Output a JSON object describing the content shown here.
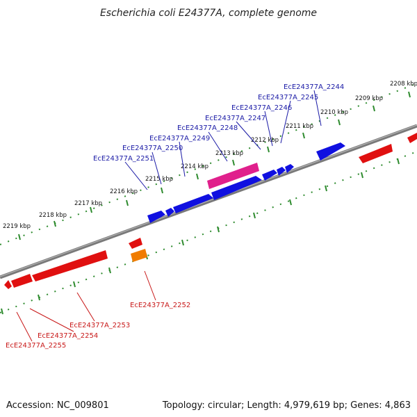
{
  "title": "Escherichia coli E24377A, complete genome",
  "footer": {
    "accession": "Accession: NC_009801",
    "summary": "Topology: circular; Length: 4,979,619 bp; Genes: 4,863"
  },
  "colors": {
    "backbone": "#7a7a7a",
    "ticks": "#2e8b2e",
    "forward_gene": "#1010e0",
    "reverse_gene": "#e01010",
    "highlight_gene": "#e0208c",
    "other_gene": "#f07c00",
    "label_blue": "#1a1aa6",
    "label_red": "#c81818"
  },
  "scale": {
    "tick_labels": [
      "2208 kbp",
      "2209 kbp",
      "2210 kbp",
      "2211 kbp",
      "2212 kbp",
      "2213 kbp",
      "2214 kbp",
      "2215 kbp",
      "2216 kbp",
      "2217 kbp",
      "2218 kbp",
      "2219 kbp"
    ]
  },
  "genes_forward": [
    {
      "label": "EcE24377A_2244"
    },
    {
      "label": "EcE24377A_2245"
    },
    {
      "label": "EcE24377A_2246"
    },
    {
      "label": "EcE24377A_2247"
    },
    {
      "label": "EcE24377A_2248"
    },
    {
      "label": "EcE24377A_2249"
    },
    {
      "label": "EcE24377A_2250"
    },
    {
      "label": "EcE24377A_2251"
    }
  ],
  "genes_reverse": [
    {
      "label": "EcE24377A_2252"
    },
    {
      "label": "EcE24377A_2253"
    },
    {
      "label": "EcE24377A_2254"
    },
    {
      "label": "EcE24377A_2255"
    }
  ]
}
